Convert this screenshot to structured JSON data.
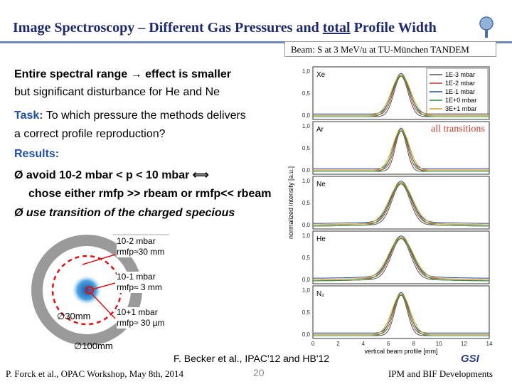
{
  "slide": {
    "title_pre": "Image Spectroscopy – Different Gas Pressures and ",
    "title_u": "total",
    "title_post": " Profile Width",
    "beam": "Beam: S at 3 MeV/u at TU-München TANDEM",
    "intro1": "Entire spectral range → effect is smaller",
    "intro2": "but significant disturbance for He and Ne",
    "task_label": "Task:",
    "task1": " To which pressure the methods delivers",
    "task2": "a correct profile reproduction?",
    "results": "Results:",
    "bullet1": "Ø avoid 10-2 mbar < p < 10 mbar ⟺",
    "bullet1b": "chose either rmfp >> rbeam or rmfp<< rbeam",
    "bullet2": "Ø use transition of the charged specious",
    "all_transitions": "all transitions"
  },
  "rings": {
    "a1_exp": "-2",
    "a1_p": "10-2 mbar",
    "a1_r": "rmfp≈30 mm",
    "a2_exp": "-1",
    "a2_p": "10-1 mbar",
    "a2_r": "rmfp≈ 3 mm",
    "a3_exp": "+1",
    "a3_p": "10+1 mbar",
    "a3_r": "rmfp≈ 30 µm",
    "d30": "∅30mm",
    "d100": "∅100mm"
  },
  "plot": {
    "ylabel": "normalized intensity [a.u.]",
    "xlabel": "vertical beam profile [mm]",
    "gases": [
      "Xe",
      "Ar",
      "Ne",
      "He",
      "N₂"
    ],
    "yticks": [
      "1,0",
      "0,5",
      "0,0"
    ],
    "xticks": [
      "0",
      "2",
      "4",
      "6",
      "8",
      "10",
      "12",
      "14"
    ],
    "legend": [
      "1E-3 mbar",
      "1E-2 mbar",
      "1E-1 mbar",
      "1E+0 mbar",
      "3E+1 mbar"
    ],
    "legend_colors": [
      "#555555",
      "#c0392b",
      "#1f4fa8",
      "#2e8b3a",
      "#d4a017"
    ]
  },
  "footer": {
    "ref": "F. Becker et al., IPAC'12 and HB'12",
    "author": "P. Forck et al., OPAC Workshop, May 8th, 2014",
    "page": "20",
    "dept": "IPM and BIF Developments",
    "logo": "GSI"
  }
}
